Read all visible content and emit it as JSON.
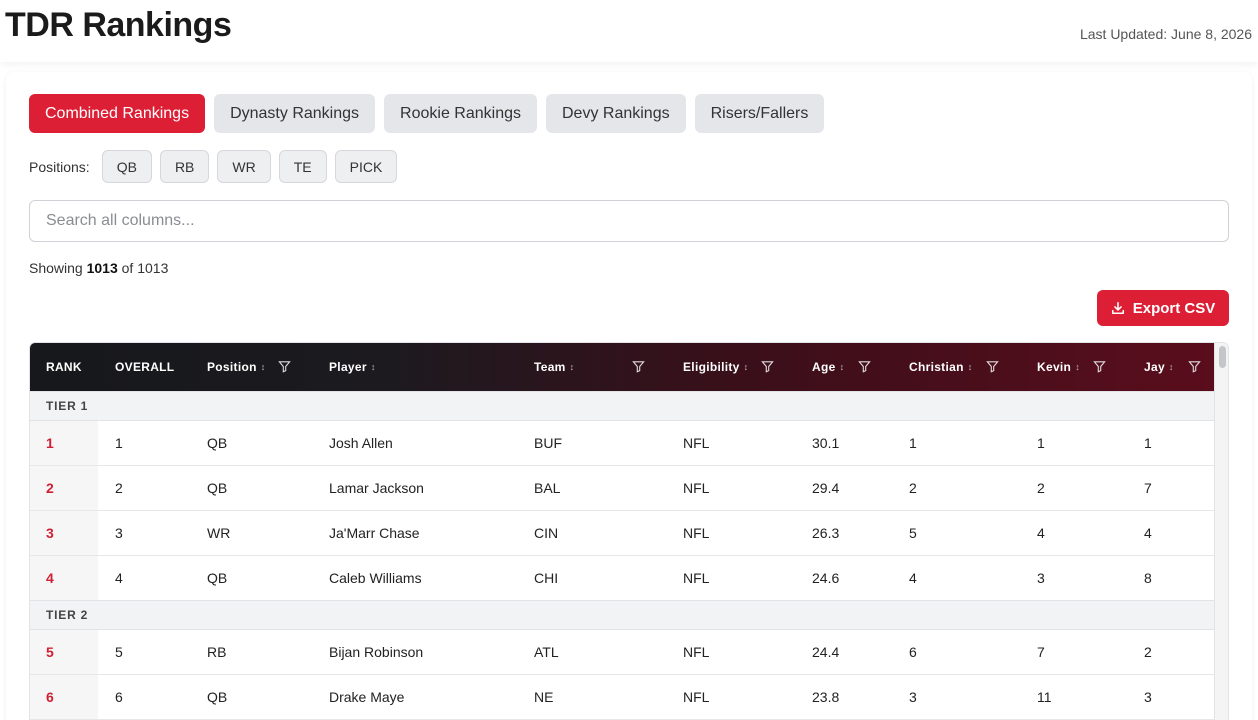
{
  "header": {
    "title": "TDR Rankings",
    "last_updated": "Last Updated: June 8, 2026"
  },
  "tabs": [
    {
      "label": "Combined Rankings",
      "active": true
    },
    {
      "label": "Dynasty Rankings",
      "active": false
    },
    {
      "label": "Rookie Rankings",
      "active": false
    },
    {
      "label": "Devy Rankings",
      "active": false
    },
    {
      "label": "Risers/Fallers",
      "active": false
    }
  ],
  "positions": {
    "label": "Positions:",
    "options": [
      "QB",
      "RB",
      "WR",
      "TE",
      "PICK"
    ]
  },
  "search": {
    "placeholder": "Search all columns..."
  },
  "showing": {
    "prefix": "Showing",
    "count": "1013",
    "middle": "of",
    "total": "1013"
  },
  "export": {
    "label": "Export CSV",
    "icon": "download-icon"
  },
  "table": {
    "columns": [
      "RANK",
      "OVERALL",
      "Position",
      "Player",
      "Team",
      "Eligibility",
      "Age",
      "Christian",
      "Kevin",
      "Jay"
    ],
    "tiers": [
      {
        "label": "TIER 1",
        "rows": [
          [
            "1",
            "1",
            "QB",
            "Josh Allen",
            "BUF",
            "NFL",
            "30.1",
            "1",
            "1",
            "1"
          ],
          [
            "2",
            "2",
            "QB",
            "Lamar Jackson",
            "BAL",
            "NFL",
            "29.4",
            "2",
            "2",
            "7"
          ],
          [
            "3",
            "3",
            "WR",
            "Ja'Marr Chase",
            "CIN",
            "NFL",
            "26.3",
            "5",
            "4",
            "4"
          ],
          [
            "4",
            "4",
            "QB",
            "Caleb Williams",
            "CHI",
            "NFL",
            "24.6",
            "4",
            "3",
            "8"
          ]
        ]
      },
      {
        "label": "TIER 2",
        "rows": [
          [
            "5",
            "5",
            "RB",
            "Bijan Robinson",
            "ATL",
            "NFL",
            "24.4",
            "6",
            "7",
            "2"
          ],
          [
            "6",
            "6",
            "QB",
            "Drake Maye",
            "NE",
            "NFL",
            "23.8",
            "3",
            "11",
            "3"
          ]
        ]
      }
    ]
  },
  "colors": {
    "accent": "#dc1f34",
    "header_dark": "#16181c",
    "header_wine": "#5a0d1c"
  }
}
